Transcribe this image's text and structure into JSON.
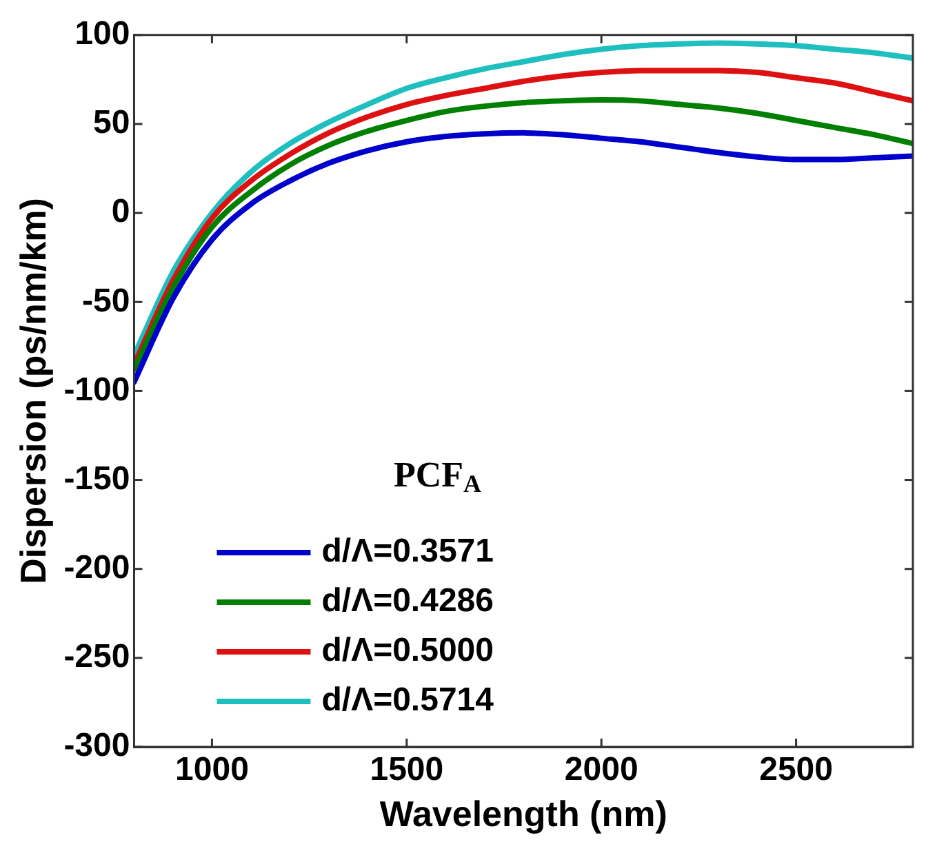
{
  "chart_data": {
    "type": "line",
    "xlabel": "Wavelength (nm)",
    "ylabel": "Dispersion (ps/nm/km)",
    "legend_title": "PCF$_{A}$",
    "legend": "bottom left",
    "grid": false,
    "marker": "none",
    "line_style": "solid",
    "x": [
      800,
      900,
      1000,
      1100,
      1200,
      1300,
      1400,
      1500,
      1600,
      1700,
      1800,
      1900,
      2000,
      2100,
      2200,
      2300,
      2400,
      2500,
      2600,
      2700,
      2800
    ],
    "xlim": [
      800,
      2800
    ],
    "xticks": [
      1000,
      1500,
      2000,
      2500
    ],
    "ylim": [
      -300,
      100
    ],
    "yticks": [
      -300,
      -250,
      -200,
      -150,
      -100,
      -50,
      0,
      50,
      100
    ],
    "series": [
      {
        "name": "d/Λ=0.3571",
        "color": "#0000cc",
        "values": [
          -95,
          -48,
          -15,
          5,
          18,
          28,
          35,
          40,
          43,
          44.5,
          45,
          44,
          42,
          40,
          37,
          34,
          31.5,
          30,
          30,
          31,
          32
        ]
      },
      {
        "name": "d/Λ=0.4286",
        "color": "#007f00",
        "values": [
          -88,
          -42,
          -8,
          12,
          27,
          38,
          46,
          52,
          57,
          60,
          62,
          63,
          63.5,
          63,
          61,
          59,
          56,
          52,
          48,
          44,
          39
        ]
      },
      {
        "name": "d/Λ=0.5000",
        "color": "#dd1111",
        "values": [
          -85,
          -38,
          -3,
          18,
          33,
          45,
          54,
          61,
          66,
          70,
          74,
          77,
          79,
          80,
          80,
          80,
          79,
          76,
          73,
          68,
          63
        ]
      },
      {
        "name": "d/Λ=0.5714",
        "color": "#20bfbf",
        "values": [
          -80,
          -33,
          0,
          23,
          39,
          51,
          61,
          70,
          76,
          81,
          85,
          89,
          92,
          94,
          95,
          95.5,
          95,
          94,
          92,
          90,
          87
        ]
      }
    ]
  }
}
